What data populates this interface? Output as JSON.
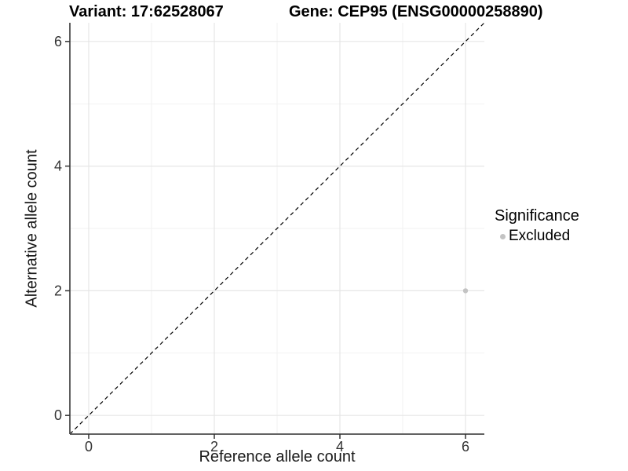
{
  "titles": {
    "left": "Variant: 17:62528067",
    "right": "Gene: CEP95 (ENSG00000258890)"
  },
  "chart_data": {
    "type": "scatter",
    "title": "Variant: 17:62528067   Gene: CEP95 (ENSG00000258890)",
    "xlabel": "Reference allele count",
    "ylabel": "Alternative allele count",
    "xlim": [
      -0.3,
      6.3
    ],
    "ylim": [
      -0.3,
      6.3
    ],
    "x_major_ticks": [
      0,
      2,
      4,
      6
    ],
    "x_minor_ticks": [
      1,
      3,
      5
    ],
    "y_major_ticks": [
      0,
      2,
      4,
      6
    ],
    "y_minor_ticks": [
      1,
      3,
      5
    ],
    "x_tick_labels": [
      "0",
      "2",
      "4",
      "6"
    ],
    "y_tick_labels": [
      "0",
      "2",
      "4",
      "6"
    ],
    "grid": true,
    "series": [
      {
        "name": "Excluded",
        "color": "#c3c3c3",
        "points": [
          {
            "x": 6,
            "y": 2
          }
        ]
      }
    ],
    "reference_line": {
      "type": "identity",
      "slope": 1,
      "intercept": 0,
      "linetype": "dashed",
      "color": "#000000"
    },
    "legend": {
      "position": "right",
      "title": "Significance",
      "items": [
        {
          "label": "Excluded",
          "color": "#c3c3c3",
          "shape": "circle"
        }
      ]
    }
  },
  "colors": {
    "background": "#ffffff",
    "grid_major": "#e6e6e6",
    "grid_minor": "#f2f2f2",
    "axis_line": "#4d4d4d",
    "tick_mark": "#333333",
    "tick_label": "#333333",
    "point": "#c3c3c3"
  }
}
